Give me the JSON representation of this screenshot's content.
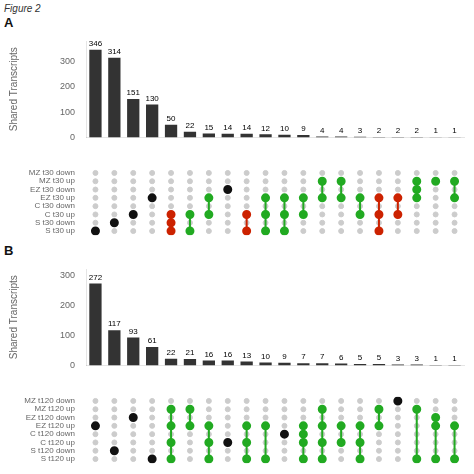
{
  "title": "Figure 2",
  "chart_data": [
    {
      "type": "bar",
      "title": "A",
      "categories": [
        null,
        null,
        null,
        null,
        null,
        null,
        null,
        null,
        null,
        null,
        null,
        null,
        null,
        null,
        null,
        null,
        null,
        null,
        null,
        null
      ],
      "values": [
        346,
        314,
        151,
        130,
        50,
        22,
        15,
        14,
        14,
        12,
        10,
        9,
        4,
        4,
        3,
        2,
        2,
        2,
        1,
        1
      ],
      "color": "#333333",
      "ylabel": "Shared Transcripts",
      "ylim": [
        0,
        380
      ],
      "yticks": [
        0,
        100,
        200,
        300
      ],
      "grid": false,
      "data_labels": true
    },
    {
      "type": "dot_matrix",
      "rows": [
        "MZ t30 down",
        "MZ t30 up",
        "EZ t30 down",
        "EZ t30 up",
        "C t30 down",
        "C t30 up",
        "S t30 down",
        "S t30 up"
      ],
      "sets": [
        [
          7
        ],
        [
          6
        ],
        [
          5
        ],
        [
          3
        ],
        [
          5,
          6,
          7
        ],
        [
          5,
          7
        ],
        [
          3,
          5
        ],
        [
          2
        ],
        [
          5,
          7
        ],
        [
          3,
          5,
          7
        ],
        [
          3,
          5,
          7
        ],
        [
          3,
          5
        ],
        [
          1,
          3
        ],
        [
          1,
          3
        ],
        [
          3,
          5
        ],
        [
          3,
          5,
          7
        ],
        [
          3,
          5
        ],
        [
          1,
          2,
          3
        ],
        [
          1
        ],
        [
          1,
          3
        ]
      ],
      "colors": [
        "#111111",
        "#111111",
        "#111111",
        "#111111",
        "#cc2200",
        "#22aa22",
        "#22aa22",
        "#111111",
        "#cc2200",
        "#22aa22",
        "#22aa22",
        "#22aa22",
        "#22aa22",
        "#22aa22",
        "#22aa22",
        "#cc2200",
        "#cc2200",
        "#22aa22",
        "#22aa22",
        "#22aa22"
      ],
      "color": "#cccccc",
      "grid": false
    },
    {
      "type": "bar",
      "title": "B",
      "categories": [
        null,
        null,
        null,
        null,
        null,
        null,
        null,
        null,
        null,
        null,
        null,
        null,
        null,
        null,
        null,
        null,
        null,
        null,
        null,
        null
      ],
      "values": [
        272,
        117,
        93,
        61,
        22,
        21,
        16,
        16,
        13,
        10,
        9,
        7,
        7,
        6,
        5,
        5,
        3,
        3,
        1,
        1
      ],
      "color": "#333333",
      "ylabel": "Shared Transcripts",
      "ylim": [
        0,
        320
      ],
      "yticks": [
        0,
        100,
        200,
        300
      ],
      "grid": false,
      "data_labels": true
    },
    {
      "type": "dot_matrix",
      "rows": [
        "MZ t120 down",
        "MZ t120 up",
        "EZ t120 down",
        "EZ t120 up",
        "C t120 down",
        "C t120 up",
        "S t120 down",
        "S t120 up"
      ],
      "sets": [
        [
          3
        ],
        [
          6
        ],
        [
          2
        ],
        [
          7
        ],
        [
          1,
          3,
          5,
          7
        ],
        [
          1,
          3
        ],
        [
          3,
          5,
          7
        ],
        [
          5
        ],
        [
          3,
          5,
          7
        ],
        [
          3,
          7
        ],
        [
          4
        ],
        [
          3,
          4,
          5,
          7
        ],
        [
          1,
          3,
          5,
          7
        ],
        [
          3,
          5
        ],
        [
          3,
          5,
          7
        ],
        [
          1,
          3
        ],
        [
          0
        ],
        [
          1,
          7
        ],
        [
          2,
          3,
          7
        ],
        [
          3,
          7
        ]
      ],
      "colors": [
        "#111111",
        "#111111",
        "#111111",
        "#111111",
        "#22aa22",
        "#22aa22",
        "#22aa22",
        "#111111",
        "#22aa22",
        "#22aa22",
        "#111111",
        "#22aa22",
        "#22aa22",
        "#22aa22",
        "#22aa22",
        "#22aa22",
        "#111111",
        "#22aa22",
        "#22aa22",
        "#22aa22"
      ],
      "color": "#cccccc",
      "grid": false
    }
  ]
}
